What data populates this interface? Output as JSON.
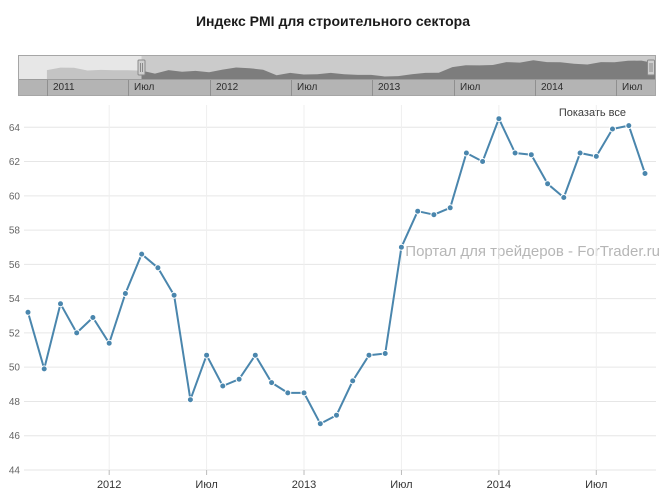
{
  "chart": {
    "title": "Индекс PMI для строительного сектора",
    "show_all_label": "Показать все",
    "watermark": "Портал для трейдеров - ForTrader.ru"
  },
  "chart_data": {
    "type": "line",
    "title": "Индекс PMI для строительного сектора",
    "xlabel": "",
    "ylabel": "",
    "series_color": "#4a86ad",
    "grid": true,
    "legend": false,
    "ylim": [
      44,
      65.3
    ],
    "y_ticks": [
      44,
      46,
      48,
      50,
      52,
      54,
      56,
      58,
      60,
      62,
      64
    ],
    "x_tick_labels": [
      "2012",
      "Июл",
      "2013",
      "Июл",
      "2014",
      "Июл"
    ],
    "x_tick_indices": [
      5,
      11,
      17,
      23,
      29,
      35
    ],
    "x": [
      "2011-08",
      "2011-09",
      "2011-10",
      "2011-11",
      "2011-12",
      "2012-01",
      "2012-02",
      "2012-03",
      "2012-04",
      "2012-05",
      "2012-06",
      "2012-07",
      "2012-08",
      "2012-09",
      "2012-10",
      "2012-11",
      "2012-12",
      "2013-01",
      "2013-02",
      "2013-03",
      "2013-04",
      "2013-05",
      "2013-06",
      "2013-07",
      "2013-08",
      "2013-09",
      "2013-10",
      "2013-11",
      "2013-12",
      "2014-01",
      "2014-02",
      "2014-03",
      "2014-04",
      "2014-05",
      "2014-06",
      "2014-07",
      "2014-08",
      "2014-09",
      "2014-10"
    ],
    "values": [
      53.2,
      49.9,
      53.7,
      52.0,
      52.9,
      51.4,
      54.3,
      56.6,
      55.8,
      54.2,
      48.1,
      50.7,
      48.9,
      49.3,
      50.7,
      49.1,
      48.5,
      48.5,
      46.7,
      47.2,
      49.2,
      50.7,
      50.8,
      57.0,
      59.1,
      58.9,
      59.3,
      62.5,
      62.0,
      64.5,
      62.5,
      62.4,
      60.7,
      59.9,
      62.5,
      62.3,
      63.9,
      64.1,
      61.3
    ]
  },
  "navigator": {
    "labels": [
      "2011",
      "Июл",
      "2012",
      "Июл",
      "2013",
      "Июл",
      "2014",
      "Июл"
    ],
    "tick_indices": [
      0,
      6,
      12,
      18,
      24,
      30,
      36,
      42
    ],
    "selected_start_index": 7,
    "values": [
      53.7,
      56.5,
      56.4,
      53.3,
      54.0,
      53.6,
      53.5,
      53.2,
      49.9,
      53.7,
      52.0,
      52.9,
      51.4,
      54.3,
      56.6,
      55.8,
      54.2,
      48.1,
      50.7,
      48.9,
      49.3,
      50.7,
      49.1,
      48.5,
      48.5,
      46.7,
      47.2,
      49.2,
      50.7,
      50.8,
      57.0,
      59.1,
      58.9,
      59.3,
      62.5,
      62.0,
      64.5,
      62.5,
      62.4,
      60.7,
      59.9,
      62.5,
      62.3,
      63.9,
      64.1,
      61.3
    ]
  }
}
